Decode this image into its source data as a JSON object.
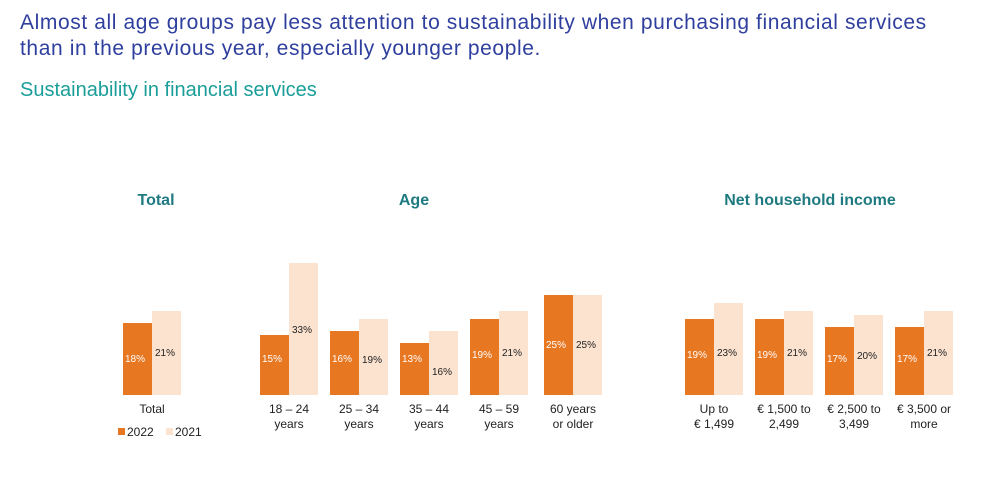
{
  "headline": "Almost all age groups pay less attention to sustainability when purchasing financial services than in the previous year, especially younger people.",
  "subtitle": "Sustainability in financial services",
  "chart_data": {
    "type": "bar",
    "groups": [
      {
        "title": "Total",
        "categories": [
          [
            "Total"
          ]
        ]
      },
      {
        "title": "Age",
        "categories": [
          [
            "18 – 24",
            "years"
          ],
          [
            "25 – 34",
            "years"
          ],
          [
            "35 – 44",
            "years"
          ],
          [
            "45 – 59",
            "years"
          ],
          [
            "60 years",
            "or older"
          ]
        ]
      },
      {
        "title": "Net household income",
        "categories": [
          [
            "Up to",
            "€ 1,499"
          ],
          [
            "€ 1,500 to",
            "2,499"
          ],
          [
            "€ 2,500 to",
            "3,499"
          ],
          [
            "€ 3,500 or",
            "more"
          ]
        ]
      }
    ],
    "series": [
      {
        "name": "2022",
        "color": "#e87722",
        "values": [
          18,
          15,
          16,
          13,
          19,
          25,
          19,
          19,
          17,
          17
        ],
        "labels": [
          "18%",
          "15%",
          "16%",
          "13%",
          "19%",
          "25%",
          "19%",
          "19%",
          "17%",
          "17%"
        ]
      },
      {
        "name": "2021",
        "color": "#fbe3d0",
        "values": [
          21,
          33,
          19,
          16,
          21,
          25,
          23,
          21,
          20,
          21
        ],
        "labels": [
          "21%",
          "33%",
          "19%",
          "16%",
          "21%",
          "25%",
          "23%",
          "21%",
          "20%",
          "21%"
        ]
      }
    ],
    "ylim": [
      0,
      35
    ],
    "legend_position": "bottom-left"
  }
}
